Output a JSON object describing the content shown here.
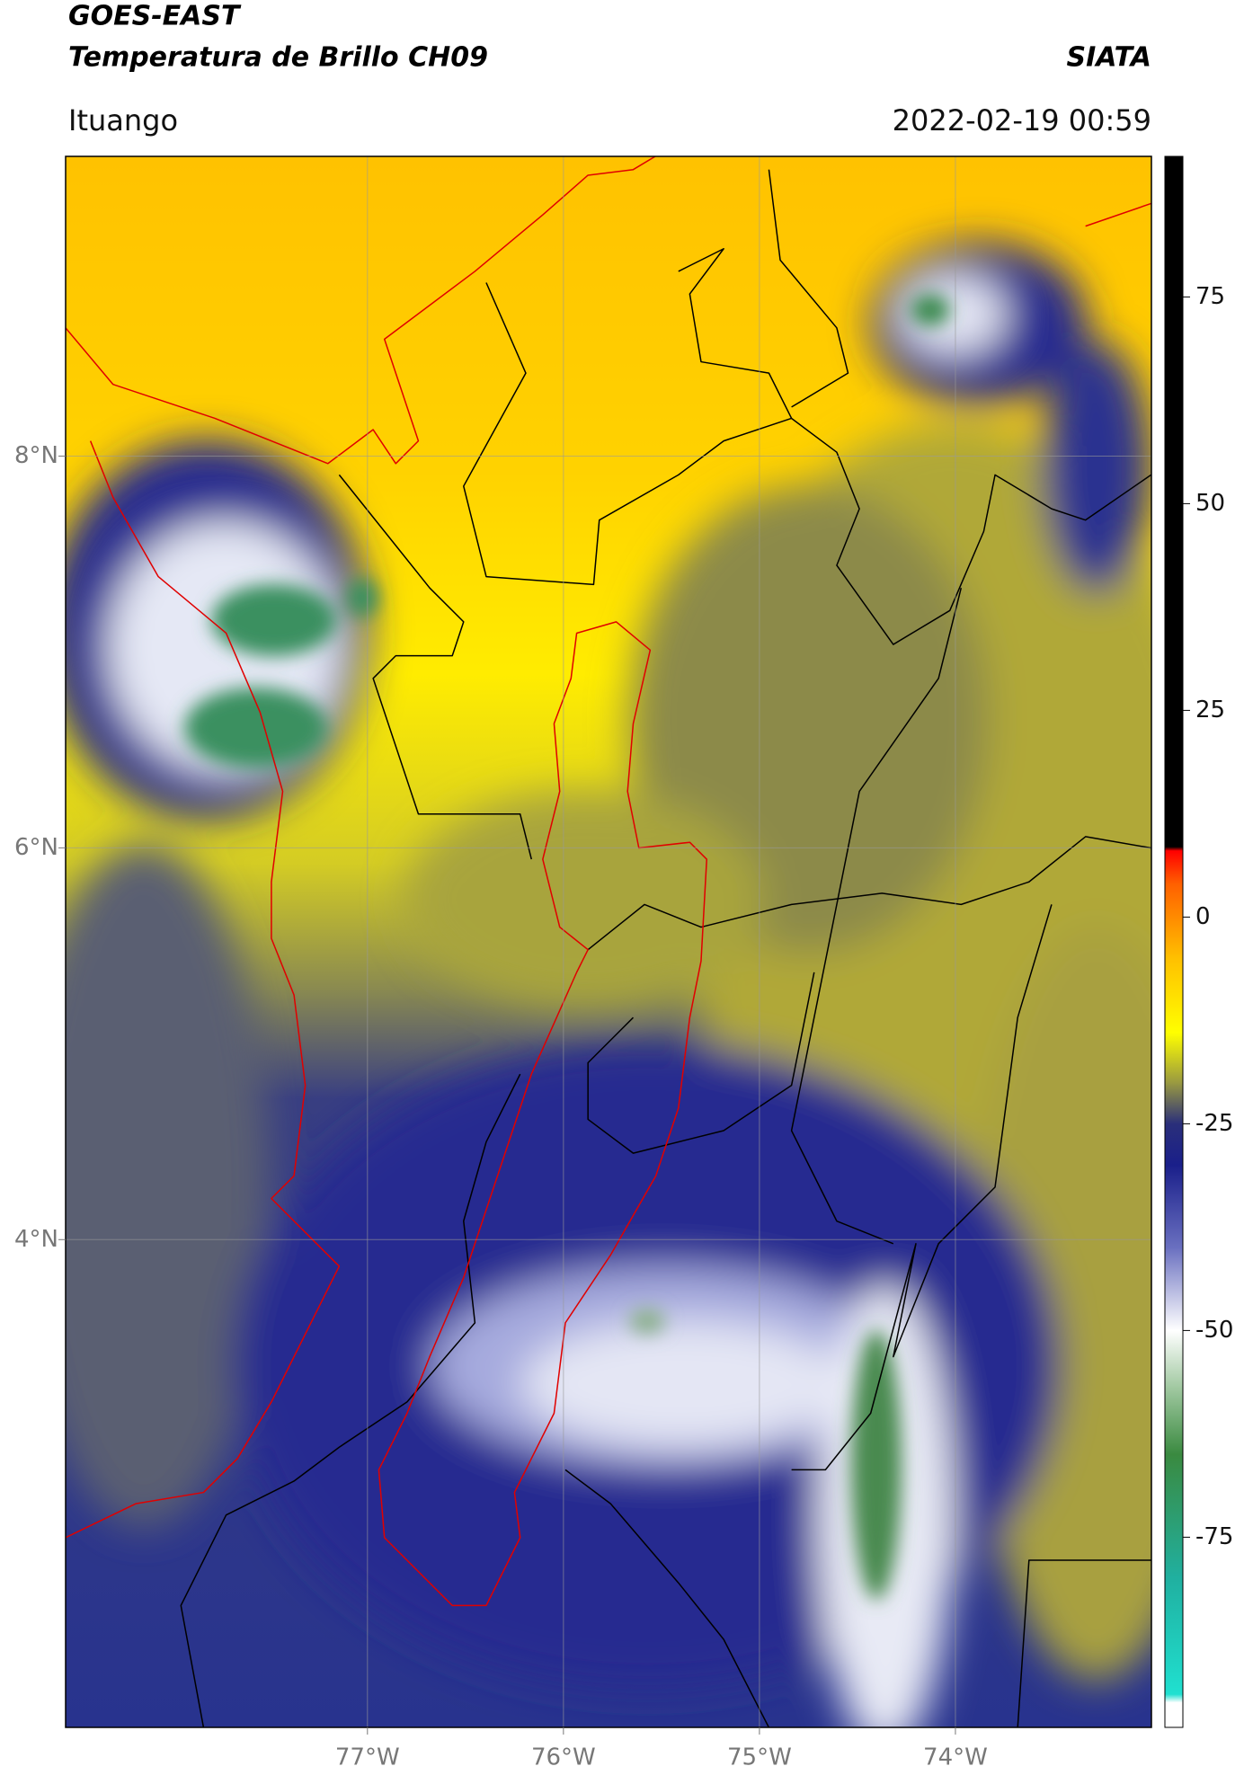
{
  "header": {
    "title": "GOES-EAST",
    "subtitle": "Temperatura de Brillo CH09",
    "source": "SIATA",
    "location": "Ituango",
    "datetime": "2022-02-19 00:59"
  },
  "map": {
    "xlim": [
      -78.54,
      -73.0
    ],
    "ylim": [
      1.51,
      9.53
    ],
    "xticks": [
      {
        "value": -77,
        "label": "77°W"
      },
      {
        "value": -76,
        "label": "76°W"
      },
      {
        "value": -75,
        "label": "75°W"
      },
      {
        "value": -74,
        "label": "74°W"
      }
    ],
    "yticks": [
      {
        "value": 8,
        "label": "8°N"
      },
      {
        "value": 6,
        "label": "6°N"
      },
      {
        "value": 4,
        "label": "4°N"
      }
    ],
    "grid": true
  },
  "colorbar": {
    "lim": [
      -98,
      92
    ],
    "ticks": [
      75,
      50,
      25,
      0,
      -25,
      -50,
      -75
    ],
    "stops": [
      {
        "value": -98,
        "color": "#ffffff"
      },
      {
        "value": -95,
        "color": "#ffffff"
      },
      {
        "value": -94,
        "color": "#20e0d0"
      },
      {
        "value": -80,
        "color": "#20b0a0"
      },
      {
        "value": -65,
        "color": "#3a8a40"
      },
      {
        "value": -57,
        "color": "#a0c8a0"
      },
      {
        "value": -50,
        "color": "#ffffff"
      },
      {
        "value": -40,
        "color": "#6a70c0"
      },
      {
        "value": -30,
        "color": "#1a1f8a"
      },
      {
        "value": -25,
        "color": "#2a2f7a"
      },
      {
        "value": -20,
        "color": "#9a9a40"
      },
      {
        "value": -14,
        "color": "#ffff00"
      },
      {
        "value": -5,
        "color": "#ffc000"
      },
      {
        "value": 4,
        "color": "#ff6000"
      },
      {
        "value": 8,
        "color": "#ff0000"
      },
      {
        "value": 8.5,
        "color": "#000000"
      },
      {
        "value": 92,
        "color": "#000000"
      }
    ]
  }
}
